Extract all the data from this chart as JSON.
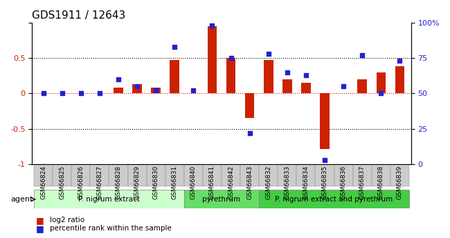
{
  "title": "GDS1911 / 12643",
  "samples": [
    "GSM66824",
    "GSM66825",
    "GSM66826",
    "GSM66827",
    "GSM66828",
    "GSM66829",
    "GSM66830",
    "GSM66831",
    "GSM66840",
    "GSM66841",
    "GSM66842",
    "GSM66843",
    "GSM66832",
    "GSM66833",
    "GSM66834",
    "GSM66835",
    "GSM66836",
    "GSM66837",
    "GSM66838",
    "GSM66839"
  ],
  "log2_ratio": [
    0.0,
    0.0,
    0.0,
    0.0,
    0.08,
    0.13,
    0.08,
    0.47,
    0.0,
    0.95,
    0.5,
    -0.35,
    0.47,
    0.2,
    0.15,
    -0.78,
    0.0,
    0.2,
    0.3,
    0.38
  ],
  "percentile": [
    50,
    50,
    50,
    50,
    60,
    55,
    52,
    83,
    52,
    98,
    75,
    22,
    78,
    65,
    63,
    3,
    55,
    77,
    50,
    73
  ],
  "groups": [
    {
      "label": "P. nigrum extract",
      "start": 0,
      "end": 7,
      "color": "#ccffcc"
    },
    {
      "label": "pyrethrum",
      "start": 8,
      "end": 11,
      "color": "#66dd66"
    },
    {
      "label": "P. nigrum extract and pyrethrum",
      "start": 12,
      "end": 19,
      "color": "#44cc44"
    }
  ],
  "bar_color": "#cc2200",
  "dot_color": "#2222cc",
  "ylim_left": [
    -1,
    1
  ],
  "ylim_right": [
    0,
    100
  ],
  "yticks_left": [
    -1,
    -0.5,
    0,
    0.5,
    1
  ],
  "ytick_labels_left": [
    "-1",
    "-0.5",
    "0",
    "0.5",
    ""
  ],
  "yticks_right": [
    0,
    25,
    50,
    75,
    100
  ],
  "ytick_labels_right": [
    "0",
    "25",
    "50",
    "75",
    "100%"
  ],
  "hlines": [
    0.5,
    0.0,
    -0.5
  ],
  "hline_colors": [
    "black",
    "red",
    "black"
  ],
  "hline_styles": [
    "dotted",
    "dotted",
    "dotted"
  ],
  "bar_width": 0.5,
  "background_color": "#ffffff",
  "plot_bg": "#ffffff"
}
